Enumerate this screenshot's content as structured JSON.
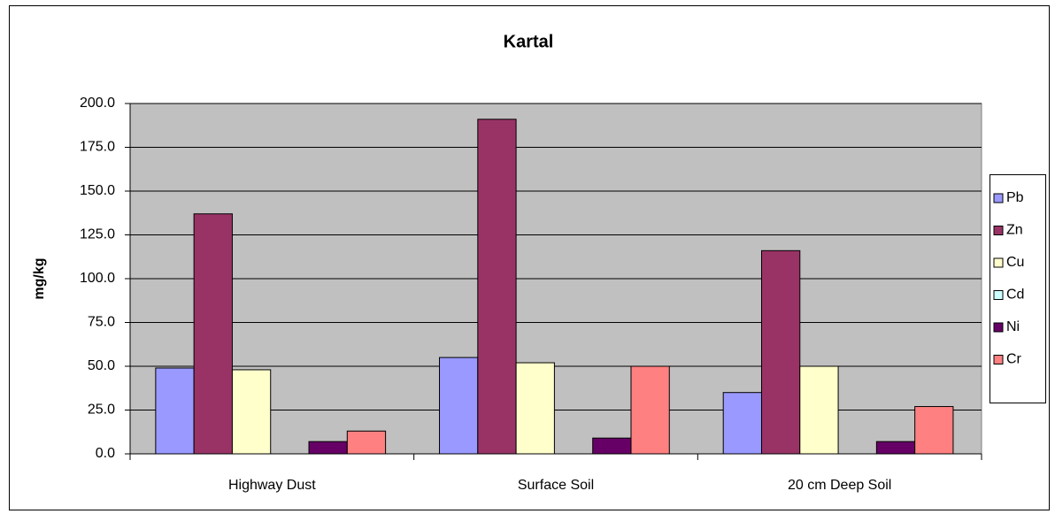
{
  "chart_data": {
    "type": "bar",
    "title": "Kartal",
    "y_label": "mg/kg",
    "categories": [
      "Highway Dust",
      "Surface Soil",
      "20 cm Deep Soil"
    ],
    "series": [
      {
        "name": "Pb",
        "color": "#9999ff",
        "values": [
          49,
          55,
          35
        ]
      },
      {
        "name": "Zn",
        "color": "#993366",
        "values": [
          137,
          191,
          116
        ]
      },
      {
        "name": "Cu",
        "color": "#ffffcc",
        "values": [
          48,
          52,
          50
        ]
      },
      {
        "name": "Cd",
        "color": "#ccffff",
        "values": [
          0,
          0,
          0
        ]
      },
      {
        "name": "Ni",
        "color": "#660066",
        "values": [
          7,
          9,
          7
        ]
      },
      {
        "name": "Cr",
        "color": "#ff8080",
        "values": [
          13,
          50,
          27
        ]
      }
    ],
    "ylim": [
      0,
      200
    ],
    "yticks": [
      {
        "value": 0,
        "label": "0.0"
      },
      {
        "value": 25,
        "label": "25.0"
      },
      {
        "value": 50,
        "label": "50.0"
      },
      {
        "value": 75,
        "label": "75.0"
      },
      {
        "value": 100,
        "label": "100.0"
      },
      {
        "value": 125,
        "label": "125.0"
      },
      {
        "value": 150,
        "label": "150.0"
      },
      {
        "value": 175,
        "label": "175.0"
      },
      {
        "value": 200,
        "label": "200.0"
      }
    ],
    "grid": true,
    "legend": "right"
  }
}
